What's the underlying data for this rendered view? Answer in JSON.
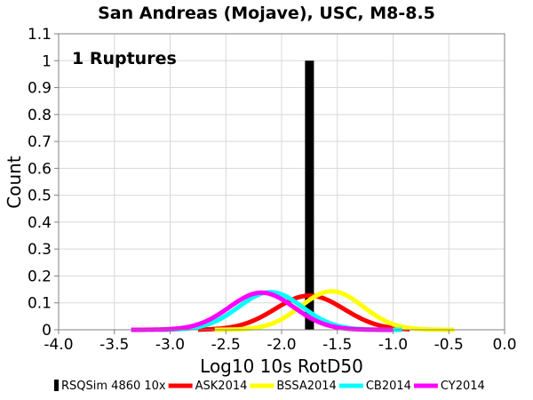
{
  "chart_data": {
    "type": "line",
    "title": "San Andreas (Mojave), USC, M8-8.5",
    "xlabel": "Log10 10s RotD50",
    "ylabel": "Count",
    "xlim": [
      -4.0,
      0.0
    ],
    "ylim": [
      0,
      1.1
    ],
    "x_ticks": [
      "-4.0",
      "-3.5",
      "-3.0",
      "-2.5",
      "-2.0",
      "-1.5",
      "-1.0",
      "-0.5",
      "0.0"
    ],
    "y_ticks": [
      "0",
      "0.1",
      "0.2",
      "0.3",
      "0.4",
      "0.5",
      "0.6",
      "0.7",
      "0.8",
      "0.9",
      "1",
      "1.1"
    ],
    "grid": true,
    "legend_position": "bottom",
    "annotation": "1 Ruptures",
    "bars": [
      {
        "name": "RSQSim 4860 10x",
        "color": "#000000",
        "x_start": -1.79,
        "x_end": -1.71,
        "value": 1.0
      }
    ],
    "series": [
      {
        "name": "ASK2014",
        "color": "#ff0000",
        "mean": -1.75,
        "sigma": 0.31,
        "peak": 0.127,
        "x_range": [
          -2.75,
          -0.85
        ]
      },
      {
        "name": "BSSA2014",
        "color": "#ffff00",
        "mean": -1.55,
        "sigma": 0.28,
        "peak": 0.143,
        "x_range": [
          -2.6,
          -0.45
        ]
      },
      {
        "name": "CB2014",
        "color": "#00ffff",
        "mean": -2.1,
        "sigma": 0.285,
        "peak": 0.14,
        "x_range": [
          -3.1,
          -0.92
        ]
      },
      {
        "name": "CY2014",
        "color": "#ff00ff",
        "mean": -2.18,
        "sigma": 0.29,
        "peak": 0.138,
        "x_range": [
          -3.35,
          -1.0
        ]
      }
    ]
  }
}
